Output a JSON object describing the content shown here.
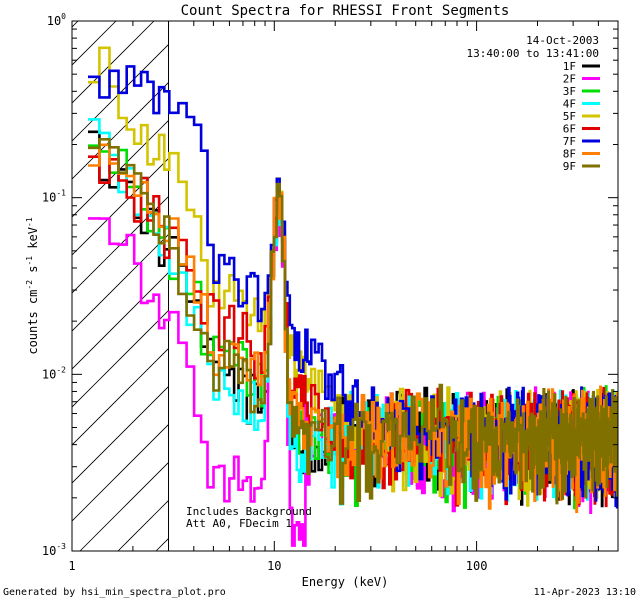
{
  "chart_data": {
    "type": "line",
    "title": "Count Spectra for RHESSI Front Segments",
    "xlabel": "Energy (keV)",
    "ylabel_main": "counts cm",
    "ylabel_sup1": "-2",
    "ylabel_mid1": " s",
    "ylabel_sup2": "-1",
    "ylabel_mid2": " keV",
    "ylabel_sup3": "-1",
    "x_scale": "log",
    "y_scale": "log",
    "xlim": [
      1,
      500
    ],
    "ylim": [
      0.001,
      1
    ],
    "x_ticks": [
      {
        "value": 1,
        "label": "1"
      },
      {
        "value": 10,
        "label": "10"
      },
      {
        "value": 100,
        "label": "100"
      }
    ],
    "y_ticks": [
      {
        "value": 1,
        "base": "10",
        "exp": "0"
      },
      {
        "value": 0.1,
        "base": "10",
        "exp": "-1"
      },
      {
        "value": 0.01,
        "base": "10",
        "exp": "-2"
      },
      {
        "value": 0.001,
        "base": "10",
        "exp": "-3"
      }
    ],
    "shaded_region": {
      "x": [
        1,
        3
      ],
      "style": "hatched"
    },
    "legend_position": "top-right",
    "header_lines": [
      "14-Oct-2003",
      "13:40:00 to 13:41:00"
    ],
    "annotations": [
      "Includes Background",
      "Att A0, FDecim 1"
    ],
    "footer_left": "Generated by hsi_min_spectra_plot.pro",
    "footer_right": "11-Apr-2023 13:10",
    "series": [
      {
        "name": "1F",
        "color": "#000000"
      },
      {
        "name": "2F",
        "color": "#ff00ff"
      },
      {
        "name": "3F",
        "color": "#00dd00"
      },
      {
        "name": "4F",
        "color": "#00ffff"
      },
      {
        "name": "5F",
        "color": "#d4c400"
      },
      {
        "name": "6F",
        "color": "#e00000"
      },
      {
        "name": "7F",
        "color": "#0000dd"
      },
      {
        "name": "8F",
        "color": "#ff8000"
      },
      {
        "name": "9F",
        "color": "#807000"
      }
    ]
  }
}
